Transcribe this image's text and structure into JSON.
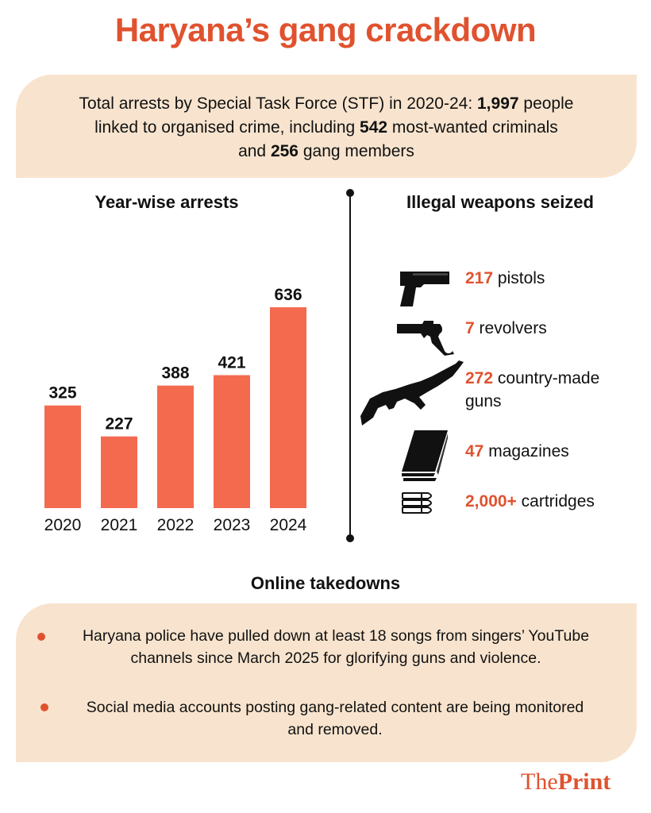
{
  "title": "Haryana’s gang crackdown",
  "summary": {
    "line1_pre": "Total arrests by Special Task Force (STF) in 2020-24: ",
    "total": "1,997",
    "line1_post": " people",
    "line2_pre": "linked to organised crime, including ",
    "most_wanted": "542",
    "line2_post": " most-wanted criminals",
    "line3_pre": "and ",
    "gang_members": "256",
    "line3_post": " gang members"
  },
  "arrests_heading": "Year-wise arrests",
  "weapons_heading": "Illegal weapons seized",
  "weapons": [
    {
      "icon": "pistol-icon",
      "count": "217",
      "label": "pistols"
    },
    {
      "icon": "revolver-icon",
      "count": "7",
      "label": "revolvers"
    },
    {
      "icon": "rifle-icon",
      "count": "272",
      "label": "country-made guns"
    },
    {
      "icon": "magazine-icon",
      "count": "47",
      "label": "magazines"
    },
    {
      "icon": "cartridges-icon",
      "count": "2,000+",
      "label": "cartridges"
    }
  ],
  "takedowns_heading": "Online takedowns",
  "takedowns": {
    "bullet1_line1": "Haryana police have pulled down at least 18 songs from singers’ YouTube",
    "bullet1_line2": "channels since March 2025 for glorifying guns and violence.",
    "bullet2_line1": "Social media accounts posting gang-related content are being monitored",
    "bullet2_line2": "and removed."
  },
  "logo": {
    "the": "The",
    "print": "Print"
  },
  "colors": {
    "accent": "#e0522f",
    "bar": "#f36a4f",
    "box": "#f8e4ce"
  },
  "chart_data": {
    "type": "bar",
    "title": "Year-wise arrests",
    "categories": [
      "2020",
      "2021",
      "2022",
      "2023",
      "2024"
    ],
    "values": [
      325,
      227,
      388,
      421,
      636
    ],
    "ylim": [
      0,
      636
    ],
    "grid": false
  }
}
